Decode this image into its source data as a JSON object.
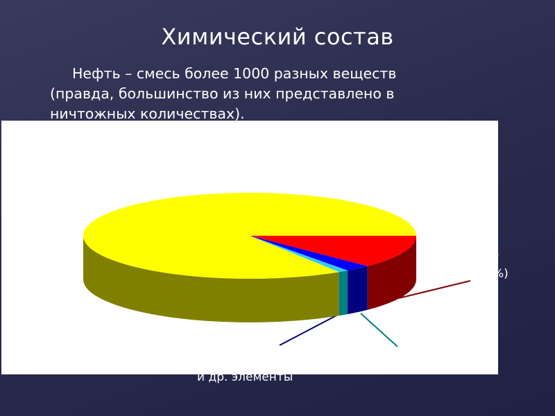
{
  "slide": {
    "title": "Химический состав",
    "paragraph_line1": "Нефть – смесь более 1000 разных веществ",
    "paragraph_line2": "(правда, большинство из них представлено в",
    "paragraph_line3": "ничтожных количествах)."
  },
  "label_fragments": {
    "right_top": "од",
    "right_bottom": "%)",
    "bottom": "и др. элементы"
  },
  "chart_data": {
    "type": "pie",
    "style": "3d",
    "slices": [
      {
        "value": 12.5,
        "color": "#ff0000",
        "side_color": "#800000"
      },
      {
        "value": 2.5,
        "color": "#0000ff",
        "side_color": "#000080"
      },
      {
        "value": 1,
        "color": "#33ccff",
        "side_color": "#008080"
      },
      {
        "value": 84,
        "color": "#ffff00",
        "side_color": "#808000"
      }
    ],
    "leader_line_colors": [
      "#800000",
      "#000080",
      "#008080"
    ]
  }
}
